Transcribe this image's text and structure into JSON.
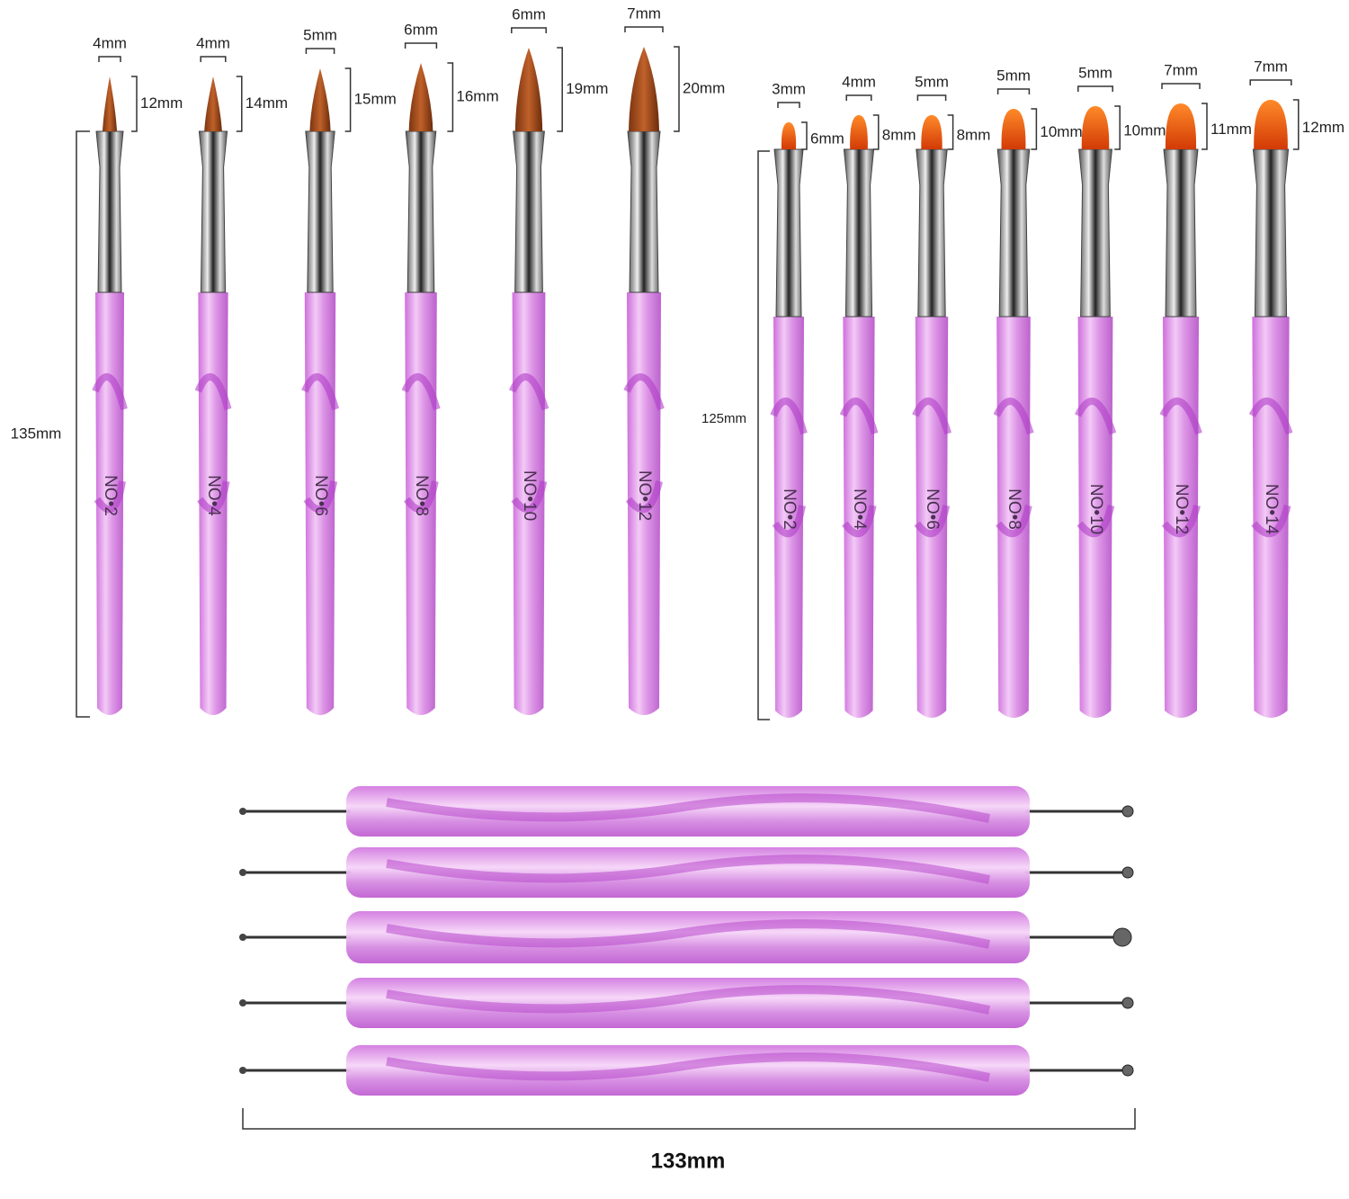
{
  "set1": {
    "length": "135mm",
    "brushes": [
      {
        "width": "4mm",
        "tip": "12mm",
        "label": "NO•2"
      },
      {
        "width": "4mm",
        "tip": "14mm",
        "label": "NO•4"
      },
      {
        "width": "5mm",
        "tip": "15mm",
        "label": "NO•6"
      },
      {
        "width": "6mm",
        "tip": "16mm",
        "label": "NO•8"
      },
      {
        "width": "6mm",
        "tip": "19mm",
        "label": "NO•10"
      },
      {
        "width": "7mm",
        "tip": "20mm",
        "label": "NO•12"
      }
    ]
  },
  "set2": {
    "length": "125mm",
    "brushes": [
      {
        "width": "3mm",
        "tip": "6mm",
        "label": "NO•2"
      },
      {
        "width": "4mm",
        "tip": "8mm",
        "label": "NO•4"
      },
      {
        "width": "5mm",
        "tip": "8mm",
        "label": "NO•6"
      },
      {
        "width": "5mm",
        "tip": "10mm",
        "label": "NO•8"
      },
      {
        "width": "5mm",
        "tip": "10mm",
        "label": "NO•10"
      },
      {
        "width": "7mm",
        "tip": "11mm",
        "label": "NO•12"
      },
      {
        "width": "7mm",
        "tip": "12mm",
        "label": "NO•14"
      }
    ]
  },
  "dotting": {
    "length": "133mm"
  }
}
